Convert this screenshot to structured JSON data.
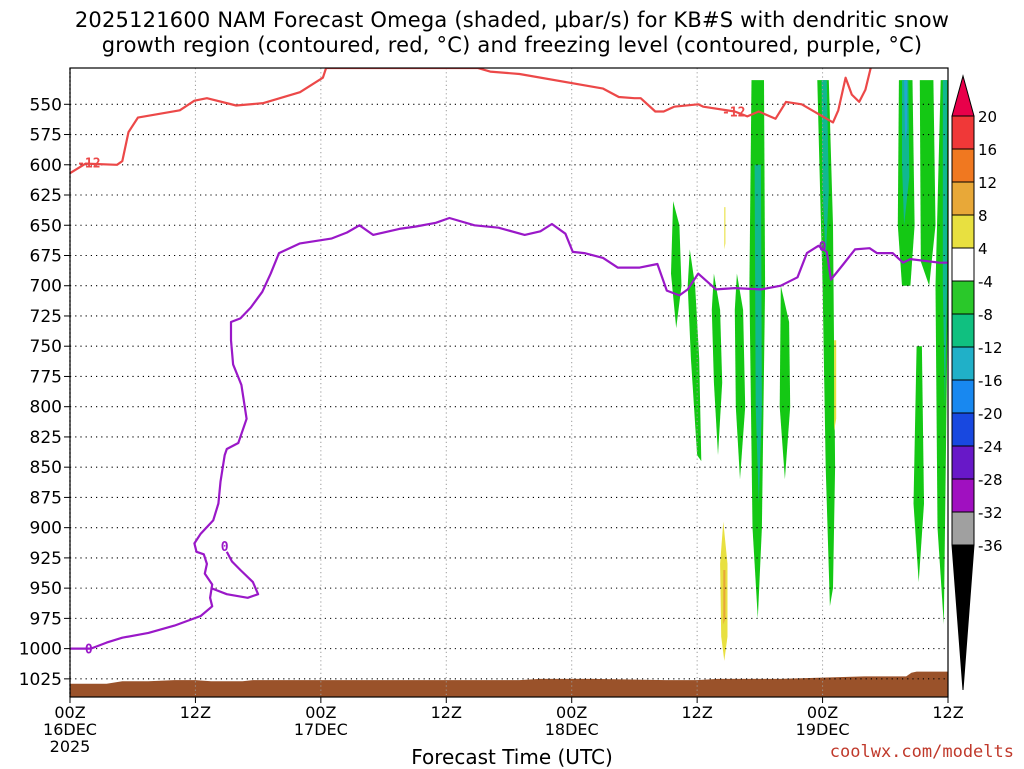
{
  "title_line1": "2025121600 NAM Forecast Omega (shaded, μbar/s) for KB#S with dendritic snow",
  "title_line2": "growth region (contoured, red, °C) and freezing level (contoured, purple, °C)",
  "credit": "coolwx.com/modelts",
  "chart_data": {
    "type": "heatmap",
    "xlabel": "Forecast Time (UTC)",
    "x_ticks": [
      {
        "h": 0,
        "lines": [
          "00Z",
          "16DEC",
          "2025"
        ]
      },
      {
        "h": 12,
        "lines": [
          "12Z"
        ]
      },
      {
        "h": 24,
        "lines": [
          "00Z",
          "17DEC"
        ]
      },
      {
        "h": 36,
        "lines": [
          "12Z"
        ]
      },
      {
        "h": 48,
        "lines": [
          "00Z",
          "18DEC"
        ]
      },
      {
        "h": 60,
        "lines": [
          "12Z"
        ]
      },
      {
        "h": 72,
        "lines": [
          "00Z",
          "19DEC"
        ]
      },
      {
        "h": 84,
        "lines": [
          "12Z"
        ]
      }
    ],
    "x_range_hours": [
      0,
      84
    ],
    "y_axis": "pressure (mb), reversed",
    "y_ticks": [
      550,
      575,
      600,
      625,
      650,
      675,
      700,
      725,
      750,
      775,
      800,
      825,
      850,
      875,
      900,
      925,
      950,
      975,
      1000,
      1025
    ],
    "y_range_mb": [
      520,
      1040
    ],
    "grid": true,
    "colorbar": {
      "labels": [
        "20",
        "16",
        "12",
        "8",
        "4",
        "-4",
        "-8",
        "-12",
        "-16",
        "-20",
        "-24",
        "-28",
        "-32",
        "-36"
      ],
      "colors": [
        "#e8004a",
        "#f03838",
        "#f07820",
        "#e8a838",
        "#e8e040",
        "#ffffff",
        "#2ac82a",
        "#10c080",
        "#20b0c8",
        "#1888f0",
        "#1848e0",
        "#6818c8",
        "#a010c0",
        "#a0a0a0",
        "#000000"
      ]
    },
    "omega_regions": [
      {
        "level": -8,
        "color": "#14c814",
        "points": [
          [
            57.7,
            630
          ],
          [
            58.3,
            650
          ],
          [
            58.5,
            700
          ],
          [
            58.0,
            735
          ],
          [
            57.5,
            690
          ]
        ]
      },
      {
        "level": -8,
        "color": "#14c814",
        "points": [
          [
            59.3,
            670
          ],
          [
            59.8,
            700
          ],
          [
            60.2,
            760
          ],
          [
            60.4,
            845
          ],
          [
            60.0,
            840
          ],
          [
            59.4,
            760
          ],
          [
            59.1,
            700
          ]
        ]
      },
      {
        "level": -8,
        "color": "#14c814",
        "points": [
          [
            61.6,
            690
          ],
          [
            62.2,
            720
          ],
          [
            62.4,
            780
          ],
          [
            62.0,
            840
          ],
          [
            61.6,
            780
          ],
          [
            61.4,
            720
          ]
        ]
      },
      {
        "level": -8,
        "color": "#14c814",
        "points": [
          [
            63.8,
            690
          ],
          [
            64.4,
            720
          ],
          [
            64.6,
            800
          ],
          [
            64.1,
            860
          ],
          [
            63.7,
            800
          ],
          [
            63.6,
            720
          ]
        ]
      },
      {
        "level": -8,
        "color": "#14c814",
        "points": [
          [
            65.2,
            530
          ],
          [
            66.4,
            530
          ],
          [
            66.5,
            700
          ],
          [
            66.2,
            900
          ],
          [
            65.8,
            975
          ],
          [
            65.3,
            900
          ],
          [
            65.0,
            700
          ]
        ]
      },
      {
        "level": -8,
        "color": "#14c814",
        "points": [
          [
            68.0,
            700
          ],
          [
            68.8,
            730
          ],
          [
            68.9,
            800
          ],
          [
            68.4,
            860
          ],
          [
            67.9,
            800
          ]
        ]
      },
      {
        "level": -8,
        "color": "#14c814",
        "points": [
          [
            71.5,
            530
          ],
          [
            72.6,
            530
          ],
          [
            73.0,
            650
          ],
          [
            73.2,
            850
          ],
          [
            73.0,
            950
          ],
          [
            72.7,
            965
          ],
          [
            72.3,
            850
          ],
          [
            72.0,
            700
          ],
          [
            71.7,
            600
          ]
        ]
      },
      {
        "level": -8,
        "color": "#14c814",
        "points": [
          [
            79.3,
            530
          ],
          [
            80.6,
            530
          ],
          [
            80.8,
            650
          ],
          [
            80.4,
            700
          ],
          [
            79.6,
            700
          ],
          [
            79.2,
            650
          ]
        ]
      },
      {
        "level": -8,
        "color": "#14c814",
        "points": [
          [
            81.3,
            530
          ],
          [
            82.6,
            530
          ],
          [
            82.8,
            650
          ],
          [
            82.2,
            700
          ],
          [
            81.4,
            680
          ]
        ]
      },
      {
        "level": -8,
        "color": "#14c814",
        "points": [
          [
            83.3,
            530
          ],
          [
            84.0,
            530
          ],
          [
            84.0,
            700
          ],
          [
            83.6,
            980
          ],
          [
            83.0,
            900
          ],
          [
            82.8,
            700
          ]
        ]
      },
      {
        "level": -8,
        "color": "#14c814",
        "points": [
          [
            81.0,
            750
          ],
          [
            81.5,
            750
          ],
          [
            81.7,
            880
          ],
          [
            81.2,
            945
          ],
          [
            80.7,
            880
          ]
        ]
      },
      {
        "level": -12,
        "color": "#10b890",
        "points": [
          [
            65.5,
            600
          ],
          [
            66.1,
            600
          ],
          [
            66.2,
            800
          ],
          [
            65.9,
            880
          ],
          [
            65.6,
            800
          ]
        ]
      },
      {
        "level": -12,
        "color": "#10b890",
        "points": [
          [
            71.9,
            530
          ],
          [
            72.4,
            530
          ],
          [
            72.6,
            620
          ],
          [
            72.3,
            680
          ],
          [
            72.0,
            620
          ]
        ]
      },
      {
        "level": -12,
        "color": "#10b890",
        "points": [
          [
            79.6,
            530
          ],
          [
            80.2,
            530
          ],
          [
            80.3,
            610
          ],
          [
            79.8,
            650
          ],
          [
            79.6,
            600
          ]
        ]
      },
      {
        "level": -12,
        "color": "#10b890",
        "points": [
          [
            83.5,
            530
          ],
          [
            83.9,
            530
          ],
          [
            83.9,
            700
          ],
          [
            83.7,
            800
          ],
          [
            83.5,
            700
          ]
        ]
      },
      {
        "level": -16,
        "color": "#20a8d0",
        "points": [
          [
            79.8,
            530
          ],
          [
            80.1,
            530
          ],
          [
            80.1,
            570
          ],
          [
            79.9,
            580
          ]
        ]
      },
      {
        "level": 4,
        "color": "#e8e040",
        "points": [
          [
            62.5,
            895
          ],
          [
            62.9,
            930
          ],
          [
            62.9,
            990
          ],
          [
            62.6,
            1010
          ],
          [
            62.3,
            990
          ],
          [
            62.2,
            930
          ]
        ]
      },
      {
        "level": 4,
        "color": "#e8e040",
        "points": [
          [
            62.6,
            635
          ],
          [
            62.7,
            635
          ],
          [
            62.7,
            665
          ],
          [
            62.6,
            670
          ]
        ]
      },
      {
        "level": 4,
        "color": "#e8e040",
        "points": [
          [
            73.1,
            745
          ],
          [
            73.3,
            745
          ],
          [
            73.3,
            810
          ],
          [
            73.1,
            820
          ]
        ]
      },
      {
        "level": 8,
        "color": "#e8a838",
        "points": [
          [
            62.5,
            935
          ],
          [
            62.7,
            935
          ],
          [
            62.7,
            975
          ],
          [
            62.5,
            980
          ]
        ]
      }
    ],
    "red_contour_minus12": [
      [
        0,
        607
      ],
      [
        1.5,
        599
      ],
      [
        4.5,
        600
      ],
      [
        5.0,
        597
      ],
      [
        5.6,
        573
      ],
      [
        6.5,
        561
      ],
      [
        10.5,
        555
      ],
      [
        11.9,
        547
      ],
      [
        13.1,
        545
      ],
      [
        15.9,
        551
      ],
      [
        18.5,
        549
      ],
      [
        22.0,
        540
      ],
      [
        24.2,
        528
      ],
      [
        24.5,
        520
      ],
      [
        39.0,
        520
      ],
      [
        40.2,
        523
      ],
      [
        43.0,
        525
      ],
      [
        51.0,
        537
      ],
      [
        52.5,
        544
      ],
      [
        54.0,
        545
      ],
      [
        54.6,
        545
      ],
      [
        56.0,
        556
      ],
      [
        56.8,
        556
      ],
      [
        57.8,
        552
      ],
      [
        60.1,
        550
      ],
      [
        60.6,
        552
      ],
      [
        63.6,
        556
      ],
      [
        64.8,
        560
      ],
      [
        65.9,
        556
      ],
      [
        67.5,
        562
      ],
      [
        68.5,
        548
      ],
      [
        70.0,
        550
      ],
      [
        71.0,
        555
      ],
      [
        72.0,
        560
      ],
      [
        73.0,
        565
      ],
      [
        73.5,
        555
      ],
      [
        74.2,
        528
      ],
      [
        74.8,
        542
      ],
      [
        75.5,
        548
      ],
      [
        76.1,
        538
      ],
      [
        76.6,
        520
      ]
    ],
    "red_labels": [
      {
        "text": "-12",
        "h": 1.8,
        "p": 598
      },
      {
        "text": "-12",
        "h": 63.5,
        "p": 556
      }
    ],
    "purple_contour_zero": [
      [
        0,
        1000
      ],
      [
        2.0,
        1000
      ],
      [
        3.5,
        995
      ],
      [
        5.0,
        991
      ],
      [
        7.5,
        987
      ],
      [
        10.0,
        981
      ],
      [
        12.5,
        973
      ],
      [
        13.6,
        965
      ],
      [
        13.4,
        958
      ],
      [
        13.6,
        947
      ],
      [
        12.9,
        938
      ],
      [
        13.1,
        930
      ],
      [
        12.8,
        922
      ],
      [
        12.1,
        920
      ],
      [
        11.9,
        913
      ],
      [
        12.5,
        905
      ],
      [
        13.7,
        894
      ],
      [
        14.2,
        880
      ],
      [
        14.4,
        862
      ],
      [
        14.8,
        840
      ],
      [
        15.0,
        835
      ],
      [
        16.1,
        830
      ],
      [
        16.9,
        810
      ],
      [
        16.4,
        782
      ],
      [
        15.6,
        765
      ],
      [
        15.4,
        745
      ],
      [
        15.4,
        730
      ],
      [
        16.3,
        727
      ],
      [
        17.3,
        718
      ],
      [
        18.4,
        705
      ],
      [
        19.2,
        690
      ],
      [
        20.0,
        673
      ],
      [
        22.0,
        665
      ],
      [
        25.0,
        661
      ],
      [
        26.5,
        656
      ],
      [
        27.7,
        650
      ],
      [
        29.0,
        658
      ],
      [
        31.5,
        653
      ],
      [
        33.1,
        651
      ],
      [
        35.0,
        648
      ],
      [
        36.3,
        644
      ],
      [
        38.7,
        650
      ],
      [
        41.0,
        652
      ],
      [
        43.5,
        658
      ],
      [
        45.0,
        655
      ],
      [
        46.1,
        649
      ],
      [
        47.4,
        657
      ],
      [
        48.1,
        672
      ],
      [
        49.2,
        673
      ],
      [
        51.0,
        677
      ],
      [
        52.4,
        685
      ],
      [
        54.5,
        685
      ],
      [
        56.2,
        682
      ],
      [
        57.1,
        704
      ],
      [
        58.3,
        708
      ],
      [
        59.1,
        703
      ],
      [
        60.1,
        690
      ],
      [
        61.8,
        703
      ],
      [
        63.6,
        702
      ],
      [
        66.1,
        703
      ],
      [
        68.0,
        700
      ],
      [
        69.6,
        693
      ],
      [
        70.5,
        673
      ],
      [
        71.6,
        667
      ],
      [
        72.4,
        672
      ],
      [
        72.8,
        695
      ],
      [
        74.0,
        682
      ],
      [
        75.1,
        670
      ],
      [
        76.5,
        669
      ],
      [
        77.2,
        673
      ],
      [
        78.7,
        673
      ],
      [
        79.7,
        681
      ],
      [
        80.4,
        678
      ],
      [
        83.2,
        681
      ],
      [
        84.0,
        681
      ]
    ],
    "purple_loop": [
      [
        15.0,
        920
      ],
      [
        15.5,
        928
      ],
      [
        16.3,
        935
      ],
      [
        17.5,
        945
      ],
      [
        18.0,
        955
      ],
      [
        17.0,
        958
      ],
      [
        15.0,
        955
      ],
      [
        13.5,
        950
      ]
    ],
    "purple_labels": [
      {
        "text": "0",
        "h": 1.8,
        "p": 1000
      },
      {
        "text": "0",
        "h": 14.8,
        "p": 915
      },
      {
        "text": "0",
        "h": 72.0,
        "p": 667
      }
    ],
    "terrain_top_mb": [
      [
        0,
        1029
      ],
      [
        3.5,
        1029
      ],
      [
        5.0,
        1027
      ],
      [
        7.5,
        1027
      ],
      [
        10.0,
        1026
      ],
      [
        12.0,
        1026
      ],
      [
        13.5,
        1027
      ],
      [
        16.5,
        1027
      ],
      [
        17.5,
        1026
      ],
      [
        24.0,
        1026
      ],
      [
        36.0,
        1026
      ],
      [
        43.0,
        1026
      ],
      [
        45.0,
        1025
      ],
      [
        50.0,
        1025
      ],
      [
        57.0,
        1026
      ],
      [
        60.0,
        1026
      ],
      [
        62.0,
        1025
      ],
      [
        68.0,
        1025
      ],
      [
        72.0,
        1024
      ],
      [
        76.0,
        1023
      ],
      [
        80.0,
        1023
      ],
      [
        80.5,
        1020
      ],
      [
        81.0,
        1019
      ],
      [
        84.0,
        1019
      ]
    ],
    "terrain_color": "#9a522a"
  }
}
